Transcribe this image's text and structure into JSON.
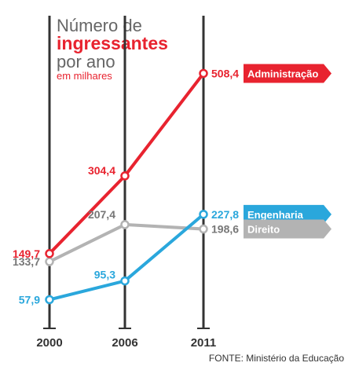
{
  "title": {
    "line1": "Número de",
    "line2": "ingressantes",
    "line3": "por ano",
    "subtitle": "em milhares"
  },
  "source": "FONTE: Ministério da Educação",
  "colors": {
    "administracao": "#e8232f",
    "engenharia": "#2aa7dc",
    "direito": "#b3b3b3",
    "axis": "#333333",
    "text_dark": "#333333",
    "text_gray": "#666666"
  },
  "chart_data": {
    "type": "line",
    "x": [
      "2000",
      "2006",
      "2011"
    ],
    "ylabel": "em milhares",
    "ylim": [
      0,
      600
    ],
    "series": [
      {
        "name": "Administração",
        "values": [
          149.7,
          304.4,
          508.4
        ],
        "labels": [
          "149,7",
          "304,4",
          "508,4"
        ],
        "color": "#e8232f"
      },
      {
        "name": "Engenharia",
        "values": [
          57.9,
          95.3,
          227.8
        ],
        "labels": [
          "57,9",
          "95,3",
          "227,8"
        ],
        "color": "#2aa7dc"
      },
      {
        "name": "Direito",
        "values": [
          133.7,
          207.4,
          198.6
        ],
        "labels": [
          "133,7",
          "207,4",
          "198,6"
        ],
        "color": "#b3b3b3"
      }
    ]
  }
}
